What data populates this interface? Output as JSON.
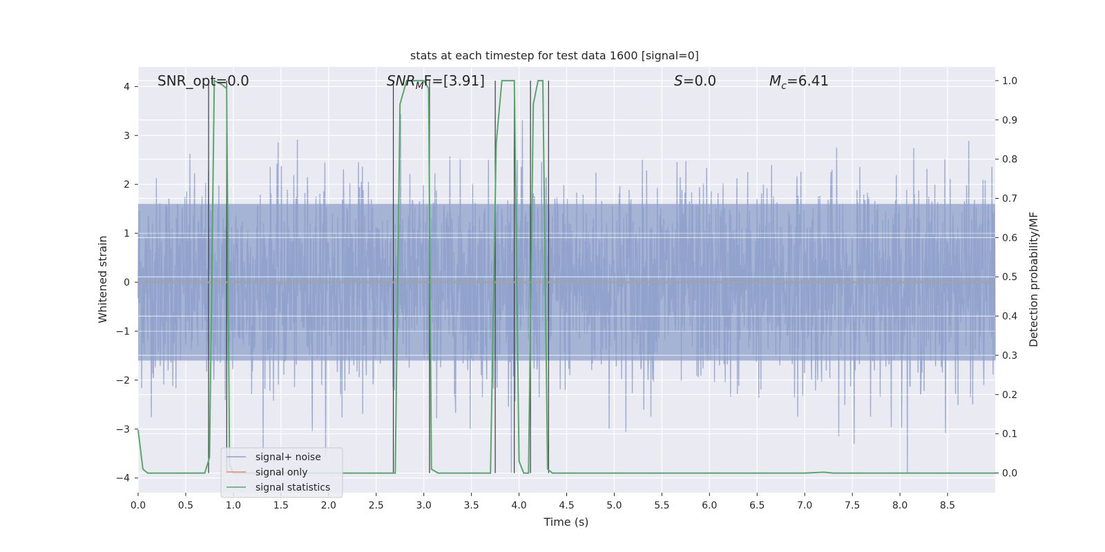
{
  "chart_data": {
    "type": "line",
    "title": "stats at each timestep for test data 1600 [signal=0]",
    "xlabel": "Time (s)",
    "ylabel": "Whitened strain",
    "ylabel_right": "Detection probability/MF",
    "xlim": [
      0,
      9.0
    ],
    "ylim": [
      -4.3,
      4.4
    ],
    "ylim_right": [
      -0.05,
      1.035
    ],
    "xticks": [
      "0.0",
      "0.5",
      "1.0",
      "1.5",
      "2.0",
      "2.5",
      "3.0",
      "3.5",
      "4.0",
      "4.5",
      "5.0",
      "5.5",
      "6.0",
      "6.5",
      "7.0",
      "7.5",
      "8.0",
      "8.5"
    ],
    "yticks": [
      "−4",
      "−3",
      "−2",
      "−1",
      "0",
      "1",
      "2",
      "3",
      "4"
    ],
    "yticks_right": [
      "0.0",
      "0.1",
      "0.2",
      "0.3",
      "0.4",
      "0.5",
      "0.6",
      "0.7",
      "0.8",
      "0.9",
      "1.0"
    ],
    "grid": true,
    "legend_position": "lower-left",
    "annotations": {
      "snr_opt": "SNR_opt=0.0",
      "snr_mf_base": "SNR",
      "snr_mf_sub": "M",
      "snr_mf_rest": "F=[3.91]",
      "s_italic": "S",
      "s_rest": "=0.0",
      "mc_base": "M",
      "mc_sub": "c",
      "mc_rest": "=6.41"
    },
    "series": [
      {
        "name": "signal+ noise",
        "color": "#8da0cb",
        "description_values": "whitened noise, amplitude approx ±2.5 with spikes up to ±3.8",
        "band_min": -2.4,
        "band_max": 2.4,
        "core": 1.6
      },
      {
        "name": "signal only",
        "color": "#e58a6c",
        "values": [
          0,
          0
        ]
      },
      {
        "name": "signal statistics",
        "color": "#55a868",
        "x": [
          0.0,
          0.05,
          0.1,
          0.15,
          0.2,
          0.6,
          0.7,
          0.75,
          0.8,
          0.88,
          0.93,
          0.96,
          1.0,
          2.6,
          2.7,
          2.75,
          2.82,
          2.9,
          3.0,
          3.05,
          3.08,
          3.15,
          3.2,
          3.3,
          3.7,
          3.76,
          3.82,
          3.88,
          3.95,
          4.0,
          4.05,
          4.1,
          4.15,
          4.2,
          4.25,
          4.3,
          4.35,
          4.4,
          4.45,
          7.0,
          7.2,
          7.3,
          8.9,
          9.0
        ],
        "y": [
          0.11,
          0.01,
          0.0,
          0.0,
          0.0,
          0.0,
          0.0,
          0.04,
          1.0,
          0.99,
          0.98,
          0.02,
          0.0,
          0.0,
          0.0,
          0.94,
          1.0,
          1.0,
          1.0,
          0.98,
          0.01,
          0.0,
          0.0,
          0.0,
          0.0,
          0.84,
          1.0,
          1.0,
          1.0,
          0.03,
          0.0,
          0.0,
          0.94,
          1.0,
          1.0,
          0.01,
          0.0,
          0.0,
          0.0,
          0.0,
          0.002,
          0.0,
          0.0,
          0.0
        ]
      }
    ],
    "vlines_x": [
      0.74,
      0.93,
      2.68,
      3.06,
      3.75,
      3.95,
      4.12,
      4.31
    ]
  }
}
